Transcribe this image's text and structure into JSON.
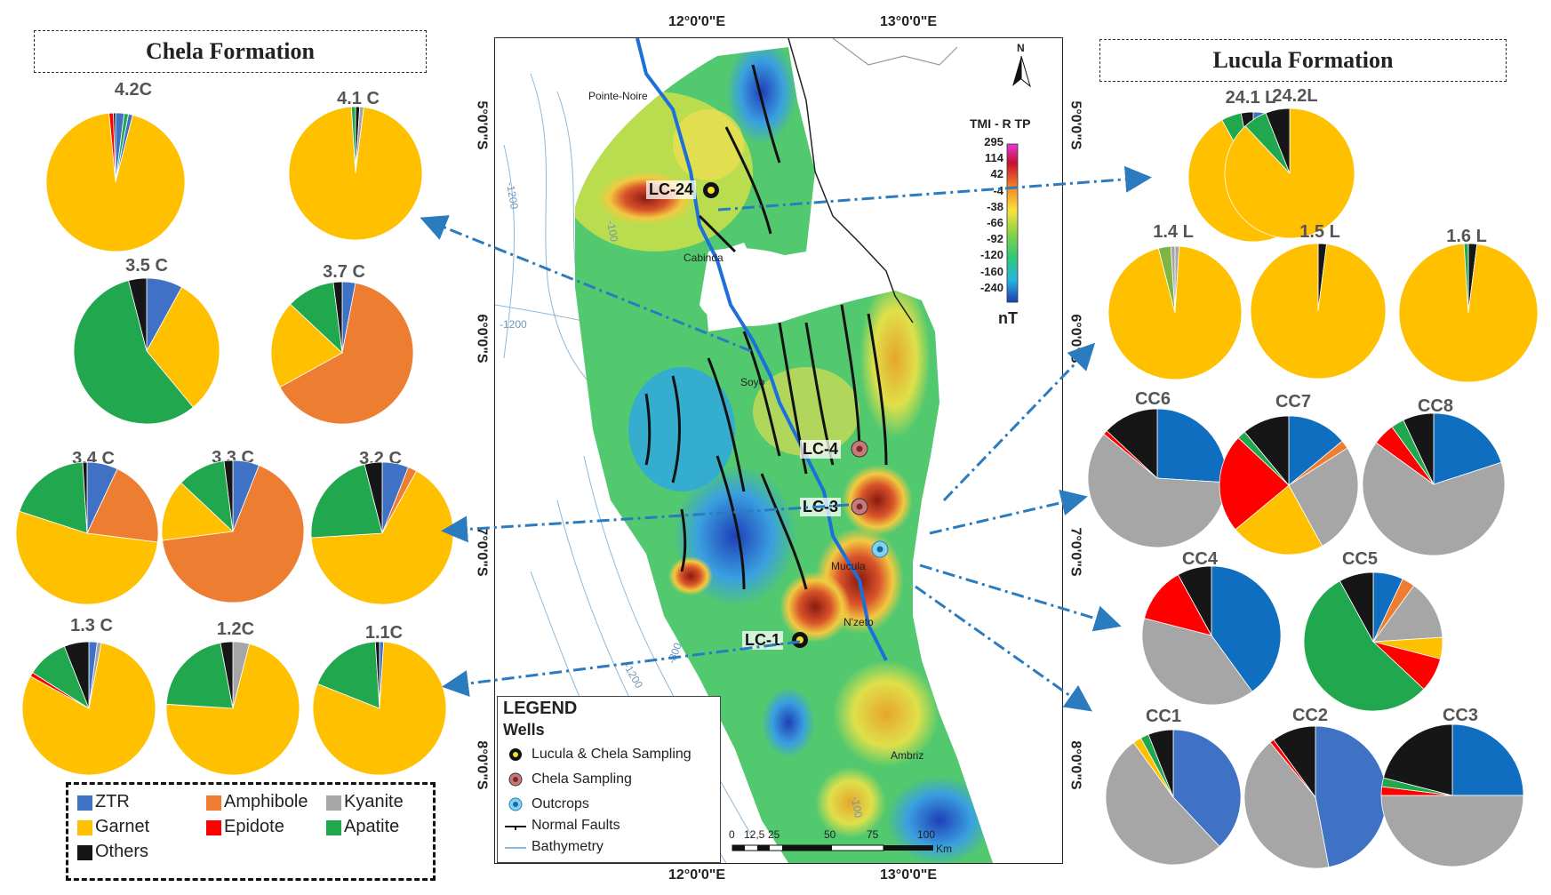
{
  "chela_title": "Chela Formation",
  "lucula_title": "Lucula Formation",
  "colors": {
    "ZTR": "#3f72c4",
    "ZTR2": "#0f6ec0",
    "Garnet": "#ffc000",
    "Amphibole": "#ed7d31",
    "Kyanite": "#a6a6a6",
    "Epidote": "#ff0000",
    "Apatite": "#21a74d",
    "Others": "#161616",
    "LightGreen": "#7fb543"
  },
  "mineral_legend": [
    {
      "name": "ZTR",
      "color": "#3f72c4"
    },
    {
      "name": "Amphibole",
      "color": "#ed7d31"
    },
    {
      "name": "Kyanite",
      "color": "#a6a6a6"
    },
    {
      "name": "Garnet",
      "color": "#ffc000"
    },
    {
      "name": "Epidote",
      "color": "#ff0000"
    },
    {
      "name": "Apatite",
      "color": "#21a74d"
    },
    {
      "name": "Others",
      "color": "#161616"
    }
  ],
  "chela_pies": [
    {
      "label": "4.2C",
      "slices": [
        [
          "ZTR",
          0.02
        ],
        [
          "Apatite",
          0.01
        ],
        [
          "ZTR",
          0.01
        ],
        [
          "Garnet",
          0.945
        ],
        [
          "Epidote",
          0.01
        ],
        [
          "Others",
          0.005
        ]
      ]
    },
    {
      "label": "4.1 C",
      "slices": [
        [
          "Others",
          0.01
        ],
        [
          "Kyanite",
          0.01
        ],
        [
          "Garnet",
          0.97
        ],
        [
          "Apatite",
          0.01
        ]
      ]
    },
    {
      "label": "3.5 C",
      "slices": [
        [
          "ZTR",
          0.08
        ],
        [
          "Garnet",
          0.31
        ],
        [
          "Apatite",
          0.57
        ],
        [
          "Others",
          0.04
        ]
      ]
    },
    {
      "label": "3.7 C",
      "slices": [
        [
          "ZTR",
          0.03
        ],
        [
          "Amphibole",
          0.64
        ],
        [
          "Garnet",
          0.2
        ],
        [
          "Apatite",
          0.11
        ],
        [
          "Others",
          0.02
        ]
      ]
    },
    {
      "label": "3.4 C",
      "slices": [
        [
          "ZTR",
          0.07
        ],
        [
          "Amphibole",
          0.2
        ],
        [
          "Garnet",
          0.53
        ],
        [
          "Apatite",
          0.19
        ],
        [
          "Others",
          0.01
        ]
      ]
    },
    {
      "label": "3.3 C",
      "slices": [
        [
          "ZTR",
          0.06
        ],
        [
          "Amphibole",
          0.67
        ],
        [
          "Garnet",
          0.14
        ],
        [
          "Apatite",
          0.11
        ],
        [
          "Others",
          0.02
        ]
      ]
    },
    {
      "label": "3.2 C",
      "slices": [
        [
          "ZTR",
          0.06
        ],
        [
          "Amphibole",
          0.02
        ],
        [
          "Garnet",
          0.66
        ],
        [
          "Apatite",
          0.22
        ],
        [
          "Others",
          0.04
        ]
      ]
    },
    {
      "label": "1.3 C",
      "slices": [
        [
          "ZTR",
          0.02
        ],
        [
          "Kyanite",
          0.01
        ],
        [
          "Garnet",
          0.8
        ],
        [
          "Epidote",
          0.01
        ],
        [
          "Apatite",
          0.1
        ],
        [
          "Others",
          0.06
        ]
      ]
    },
    {
      "label": "1.2C",
      "slices": [
        [
          "Kyanite",
          0.04
        ],
        [
          "Garnet",
          0.72
        ],
        [
          "Apatite",
          0.21
        ],
        [
          "Others",
          0.03
        ]
      ]
    },
    {
      "label": "1.1C",
      "slices": [
        [
          "ZTR",
          0.01
        ],
        [
          "Garnet",
          0.8
        ],
        [
          "Apatite",
          0.18
        ],
        [
          "Others",
          0.01
        ]
      ]
    }
  ],
  "lucula_pies": [
    {
      "label": "24.1 L",
      "slices": [
        [
          "ZTR",
          0.04
        ],
        [
          "Garnet",
          0.88
        ],
        [
          "Apatite",
          0.05
        ],
        [
          "Others",
          0.03
        ]
      ]
    },
    {
      "label": "24.2L",
      "slices": [
        [
          "Garnet",
          0.88
        ],
        [
          "Apatite",
          0.06
        ],
        [
          "Others",
          0.06
        ]
      ]
    },
    {
      "label": "1.4 L",
      "slices": [
        [
          "Kyanite",
          0.01
        ],
        [
          "Garnet",
          0.95
        ],
        [
          "LightGreen",
          0.03
        ],
        [
          "Kyanite",
          0.01
        ]
      ]
    },
    {
      "label": "1.5 L",
      "slices": [
        [
          "Others",
          0.02
        ],
        [
          "Garnet",
          0.98
        ]
      ]
    },
    {
      "label": "1.6 L",
      "slices": [
        [
          "Others",
          0.02
        ],
        [
          "Garnet",
          0.97
        ],
        [
          "Apatite",
          0.01
        ]
      ]
    },
    {
      "label": "CC6",
      "slices": [
        [
          "ZTR2",
          0.26
        ],
        [
          "Kyanite",
          0.6
        ],
        [
          "Epidote",
          0.01
        ],
        [
          "Others",
          0.13
        ]
      ]
    },
    {
      "label": "CC7",
      "slices": [
        [
          "ZTR2",
          0.14
        ],
        [
          "Amphibole",
          0.02
        ],
        [
          "Kyanite",
          0.26
        ],
        [
          "Garnet",
          0.22
        ],
        [
          "Epidote",
          0.23
        ],
        [
          "Apatite",
          0.02
        ],
        [
          "Others",
          0.11
        ]
      ]
    },
    {
      "label": "CC8",
      "slices": [
        [
          "ZTR2",
          0.2
        ],
        [
          "Kyanite",
          0.65
        ],
        [
          "Epidote",
          0.05
        ],
        [
          "Apatite",
          0.03
        ],
        [
          "Others",
          0.07
        ]
      ]
    },
    {
      "label": "CC4",
      "slices": [
        [
          "ZTR2",
          0.4
        ],
        [
          "Kyanite",
          0.39
        ],
        [
          "Epidote",
          0.13
        ],
        [
          "Others",
          0.08
        ]
      ]
    },
    {
      "label": "CC5",
      "slices": [
        [
          "ZTR2",
          0.07
        ],
        [
          "Amphibole",
          0.03
        ],
        [
          "Kyanite",
          0.14
        ],
        [
          "Garnet",
          0.05
        ],
        [
          "Epidote",
          0.08
        ],
        [
          "Apatite",
          0.55
        ],
        [
          "Others",
          0.08
        ]
      ]
    },
    {
      "label": "CC1",
      "slices": [
        [
          "ZTR",
          0.38
        ],
        [
          "Kyanite",
          0.52
        ],
        [
          "Garnet",
          0.02
        ],
        [
          "Apatite",
          0.02
        ],
        [
          "Others",
          0.06
        ]
      ]
    },
    {
      "label": "CC2",
      "slices": [
        [
          "ZTR",
          0.47
        ],
        [
          "Kyanite",
          0.42
        ],
        [
          "Epidote",
          0.01
        ],
        [
          "Others",
          0.1
        ]
      ]
    },
    {
      "label": "CC3",
      "slices": [
        [
          "ZTR2",
          0.25
        ],
        [
          "Kyanite",
          0.5
        ],
        [
          "Epidote",
          0.02
        ],
        [
          "Apatite",
          0.02
        ],
        [
          "Others",
          0.21
        ]
      ]
    }
  ],
  "map": {
    "top_lon_1": "12°0'0\"E",
    "top_lon_2": "13°0'0\"E",
    "bottom_lon_1": "12°0'0\"E",
    "bottom_lon_2": "13°0'0\"E",
    "lat_1": "5°0'0\"S",
    "lat_2": "6°0'0\"S",
    "lat_3": "7°0'0\"S",
    "lat_4": "8°0'0\"S",
    "north_label": "N",
    "places": {
      "pointe_noire": "Pointe-Noire",
      "cabinda": "Cabinda",
      "soyo": "Soyo",
      "mucula": "Mucula",
      "nzeto": "N'zeto",
      "ambriz": "Ambriz"
    },
    "bathy": {
      "b1": "-1200",
      "b2": "-100",
      "b3": "-1200",
      "b4": "-1200",
      "b5": "-800",
      "b6": "-100"
    },
    "wells": {
      "lc24": "LC-24",
      "lc4": "LC-4",
      "lc3": "LC-3",
      "lc1": "LC-1"
    },
    "tmi_title": "TMI - R TP",
    "tmi_unit": "nT",
    "tmi_ticks": [
      "295",
      "114",
      "42",
      "-4",
      "-38",
      "-66",
      "-92",
      "-120",
      "-160",
      "-240"
    ],
    "scale_ticks": [
      "0",
      "12,5",
      "25",
      "50",
      "75",
      "100"
    ],
    "scale_unit": "Km"
  },
  "legend": {
    "title": "LEGEND",
    "subtitle": "Wells",
    "items": [
      "Lucula & Chela Sampling",
      "Chela Sampling",
      "Outcrops",
      "Normal Faults",
      "Bathymetry"
    ]
  }
}
